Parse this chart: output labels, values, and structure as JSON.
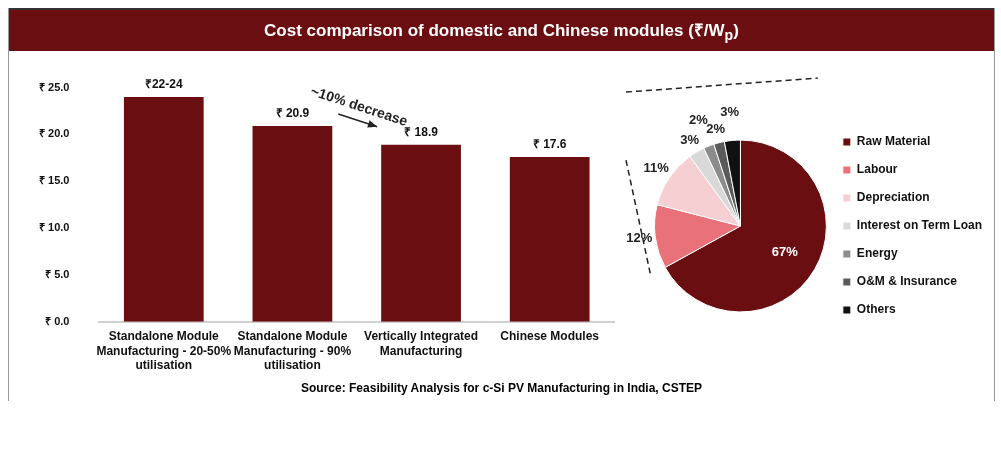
{
  "chart_data": [
    {
      "type": "bar",
      "title": "Cost comparison of domestic and Chinese modules (₹/W$_{p}$)",
      "categories": [
        "Standalone Module Manufacturing - 20-50% utilisation",
        "Standalone Module Manufacturing - 90% utilisation",
        "Vertically Integrated Manufacturing",
        "Chinese Modules"
      ],
      "values": [
        24,
        20.9,
        18.9,
        17.6
      ],
      "color": "#6b0e12",
      "value_labels": [
        "₹22-24",
        "₹ 20.9",
        "₹ 18.9",
        "₹ 17.6"
      ],
      "ylim": [
        0,
        25
      ],
      "yticks": [
        {
          "value": 0,
          "label": "₹ 0.0"
        },
        {
          "value": 5,
          "label": "₹ 5.0"
        },
        {
          "value": 10,
          "label": "₹ 10.0"
        },
        {
          "value": 15,
          "label": "₹ 15.0"
        },
        {
          "value": 20,
          "label": "₹ 20.0"
        },
        {
          "value": 25,
          "label": "₹ 25.0"
        }
      ],
      "grid": false,
      "annotations": [
        "~10% decrease",
        "Source: Feasibility Analysis for c-Si PV Manufacturing in India, CSTEP"
      ]
    },
    {
      "type": "pie",
      "categories": [
        "Raw Material",
        "Labour",
        "Depreciation",
        "Interest on Term Loan",
        "Energy",
        "O&M & Insurance",
        "Others"
      ],
      "values": [
        67,
        12,
        11,
        3,
        2,
        2,
        3
      ],
      "colors": [
        "#6b0e12",
        "#e8717a",
        "#f5cfd2",
        "#d9d9d9",
        "#8c8c8c",
        "#5a5a5a",
        "#111111"
      ],
      "value_labels": [
        "67%",
        "12%",
        "11%",
        "3%",
        "2%",
        "2%",
        "3%"
      ],
      "legend": "right"
    }
  ]
}
